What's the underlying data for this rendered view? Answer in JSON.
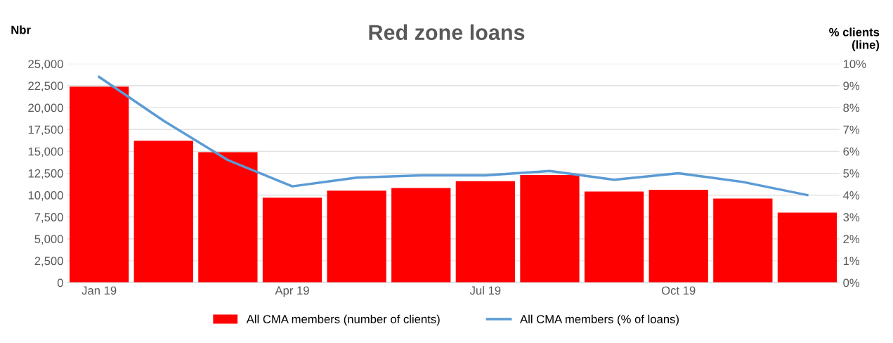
{
  "chart_data": {
    "type": "bar",
    "title": "Red zone loans",
    "ylabel": "Nbr",
    "y2label": "% clients\n(line)",
    "categories": [
      "Jan 19",
      null,
      null,
      "Apr 19",
      null,
      null,
      "Jul 19",
      null,
      null,
      "Oct 19",
      null,
      null
    ],
    "series": [
      {
        "name": "All CMA members (number of clients)",
        "color": "#ff0000",
        "values": [
          22400,
          16200,
          14900,
          9700,
          10500,
          10800,
          11600,
          12300,
          10400,
          10600,
          9600,
          8000
        ]
      },
      {
        "name": "All CMA members (% of loans)",
        "color": "#5b9bd5",
        "type": "line",
        "axis": "y2",
        "values": [
          9.4,
          7.4,
          5.6,
          4.4,
          4.8,
          4.9,
          4.9,
          5.1,
          4.7,
          5.0,
          4.6,
          4.0
        ]
      }
    ],
    "ylim": [
      0,
      25000
    ],
    "yticks": [
      0,
      {
        "value": 2500,
        "label": "2,500"
      },
      {
        "value": 5000,
        "label": "5,000"
      },
      {
        "value": 7500,
        "label": "7,500"
      },
      {
        "value": 10000,
        "label": "10,000"
      },
      {
        "value": 12500,
        "label": "12,500"
      },
      {
        "value": 15000,
        "label": "15,000"
      },
      {
        "value": 17500,
        "label": "17,500"
      },
      {
        "value": 20000,
        "label": "20,000"
      },
      {
        "value": 22500,
        "label": "22,500"
      },
      {
        "value": 25000,
        "label": "25,000"
      }
    ],
    "y2lim": [
      0,
      10
    ],
    "y2ticks": [
      {
        "value": 0,
        "label": "0%"
      },
      {
        "value": 1,
        "label": "1%"
      },
      {
        "value": 2,
        "label": "2%"
      },
      {
        "value": 3,
        "label": "3%"
      },
      {
        "value": 4,
        "label": "4%"
      },
      {
        "value": 5,
        "label": "5%"
      },
      {
        "value": 6,
        "label": "6%"
      },
      {
        "value": 7,
        "label": "7%"
      },
      {
        "value": 8,
        "label": "8%"
      },
      {
        "value": 9,
        "label": "9%"
      },
      {
        "value": 10,
        "label": "10%"
      }
    ],
    "grid": "y",
    "legend": "bottom",
    "marker": "none",
    "line_style": "solid"
  }
}
